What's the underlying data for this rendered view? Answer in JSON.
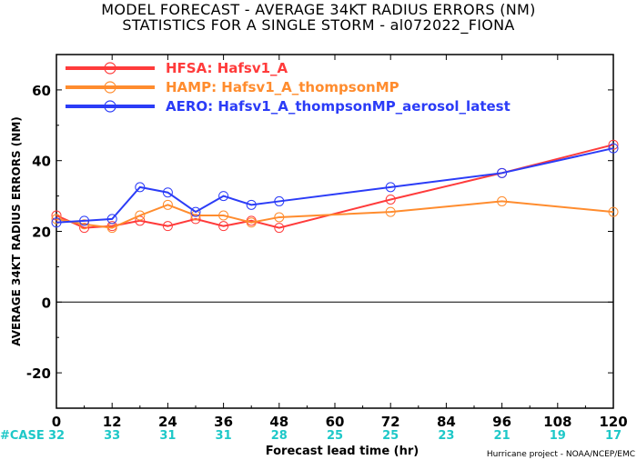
{
  "chart_data": {
    "type": "line",
    "title": "MODEL FORECAST - AVERAGE 34KT RADIUS ERRORS (NM)",
    "subtitle": "STATISTICS FOR A SINGLE STORM - al072022_FIONA",
    "xlabel": "Forecast lead time (hr)",
    "ylabel": "AVERAGE 34KT RADIUS ERRORS (NM)",
    "xlim": [
      0,
      120
    ],
    "ylim": [
      -30,
      70
    ],
    "xticks": [
      0,
      12,
      24,
      36,
      48,
      60,
      72,
      84,
      96,
      108,
      120
    ],
    "yticks": [
      -20,
      0,
      20,
      40,
      60
    ],
    "zero_line": true,
    "grid": false,
    "legend_position": "top-left",
    "case_label": "#CASE",
    "case_counts": [
      "32",
      "33",
      "31",
      "31",
      "28",
      "25",
      "25",
      "23",
      "21",
      "19",
      "17"
    ],
    "credit": "Hurricane project - NOAA/NCEP/EMC",
    "series": [
      {
        "name": "HFSA",
        "legend_text": "HFSA: Hafsv1_A",
        "color": "#ff3b3b",
        "x": [
          0,
          6,
          12,
          18,
          24,
          30,
          36,
          42,
          48,
          72,
          96,
          120
        ],
        "values": [
          24.5,
          21.0,
          21.5,
          23.0,
          21.5,
          23.5,
          21.5,
          23.0,
          21.0,
          29.0,
          36.5,
          44.5
        ]
      },
      {
        "name": "HAMP",
        "legend_text": "HAMP: Hafsv1_A_thompsonMP",
        "color": "#ff8c2e",
        "x": [
          0,
          6,
          12,
          18,
          24,
          30,
          36,
          42,
          48,
          72,
          96,
          120
        ],
        "values": [
          23.5,
          22.0,
          21.0,
          24.5,
          27.5,
          24.5,
          24.5,
          22.5,
          24.0,
          25.5,
          28.5,
          25.5
        ]
      },
      {
        "name": "AERO",
        "legend_text": "AERO: Hafsv1_A_thompsonMP_aerosol_latest",
        "color": "#2b3cf7",
        "x": [
          0,
          6,
          12,
          18,
          24,
          30,
          36,
          42,
          48,
          72,
          96,
          120
        ],
        "values": [
          22.5,
          23.0,
          23.5,
          32.5,
          31.0,
          25.5,
          30.0,
          27.5,
          28.5,
          32.5,
          36.5,
          43.5
        ]
      }
    ]
  }
}
